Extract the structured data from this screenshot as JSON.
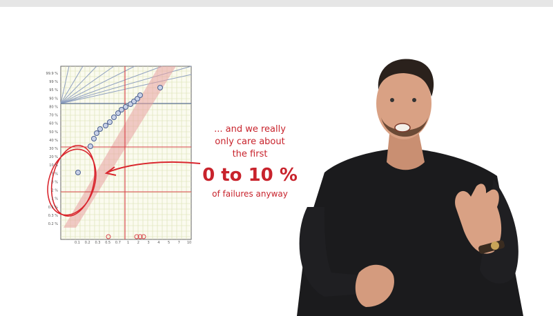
{
  "annotation": {
    "lines": [
      "... and we really",
      "only care about",
      "the first"
    ],
    "highlight": "0 to 10 %",
    "footer": "of failures anyway"
  },
  "plot": {
    "y_labels": [
      "99.9 %",
      "99 %",
      "95 %",
      "90 %",
      "80 %",
      "70 %",
      "60 %",
      "50 %",
      "40 %",
      "30 %",
      "20 %",
      "10 %",
      "5 %",
      "3 %",
      "2 %",
      "1 %",
      "0.5 %",
      "0.3 %",
      "0.2 %"
    ],
    "x_labels": [
      "0.1",
      "0.2",
      "0.3",
      "0.5",
      "0.7",
      "1",
      "2",
      "3",
      "4",
      "5",
      "7",
      "10"
    ]
  }
}
